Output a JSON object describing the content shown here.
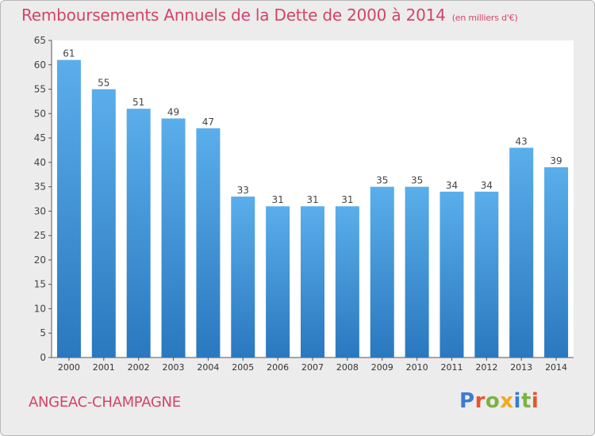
{
  "title": "Remboursements Annuels de la Dette de 2000 à 2014",
  "unit_label": "(en milliers d'€)",
  "commune": "ANGEAC-CHAMPAGNE",
  "logo": {
    "text": "Proxiti",
    "colors": [
      "#3a7bd5",
      "#e8542f",
      "#7cb342",
      "#f4a81d",
      "#3a7bd5",
      "#7cb342",
      "#e8542f"
    ]
  },
  "colors": {
    "title": "#d4436a",
    "bar_light": "#5aaeea",
    "bar_dark": "#2a78bf",
    "background": "#ececec"
  },
  "chart_data": {
    "type": "bar",
    "title": "Remboursements Annuels de la Dette de 2000 à 2014",
    "categories": [
      "2000",
      "2001",
      "2002",
      "2003",
      "2004",
      "2005",
      "2006",
      "2007",
      "2008",
      "2009",
      "2010",
      "2011",
      "2012",
      "2013",
      "2014"
    ],
    "values": [
      61,
      55,
      51,
      49,
      47,
      33,
      31,
      31,
      31,
      35,
      35,
      34,
      34,
      43,
      39
    ],
    "ylim": [
      0,
      65
    ],
    "yticks": [
      0,
      5,
      10,
      15,
      20,
      25,
      30,
      35,
      40,
      45,
      50,
      55,
      60,
      65
    ],
    "grid": false,
    "xlabel": "",
    "ylabel": ""
  }
}
